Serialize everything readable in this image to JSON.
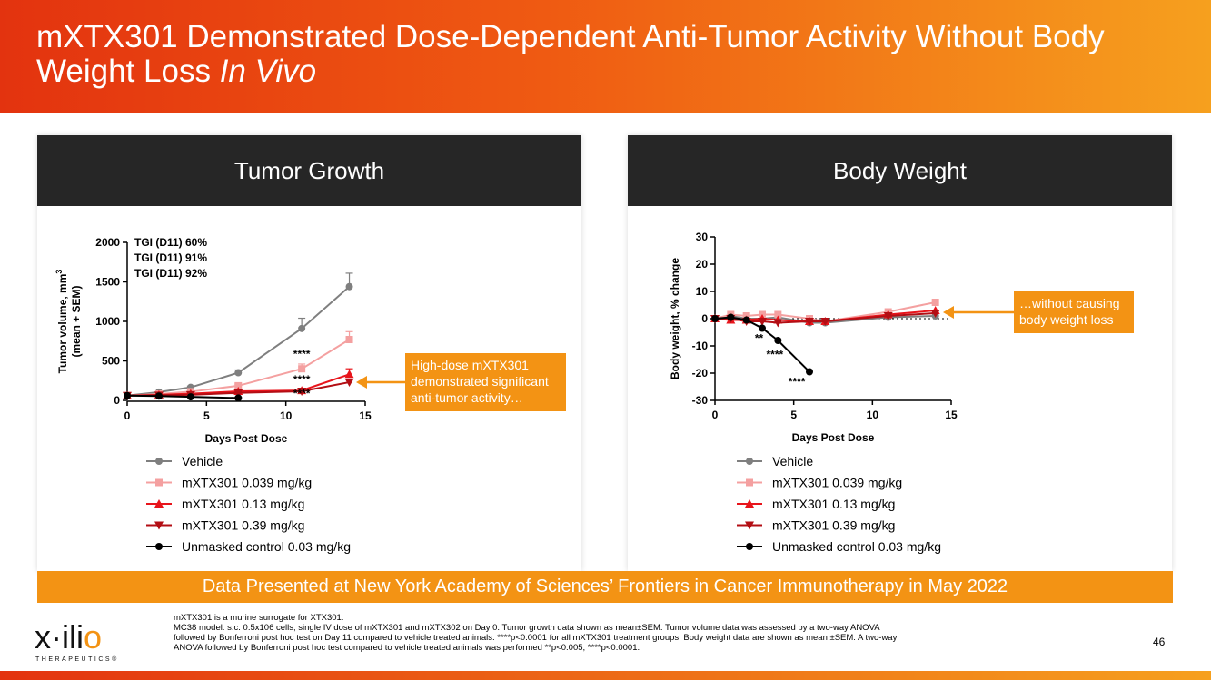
{
  "slide": {
    "title_main": "mXTX301 Demonstrated Dose-Dependent Anti-Tumor Activity Without Body Weight Loss ",
    "title_italic": "In Vivo",
    "page_number": "46",
    "banner": "Data Presented at New York Academy of Sciences’ Frontiers in Cancer Immunotherapy in May 2022",
    "footnotes": [
      "mXTX301 is a murine surrogate for XTX301.",
      "MC38 model: s.c. 0.5x106 cells; single IV dose of mXTX301 and mXTX302 on Day 0. Tumor growth data shown as mean±SEM. Tumor volume data was assessed by a two-way ANOVA followed by Bonferroni post hoc test on Day 11 compared to vehicle treated animals. ****p<0.0001 for all mXTX301 treatment groups. Body weight data are shown as mean ±SEM. A two-way ANOVA followed by Bonferroni post hoc test compared to vehicle treated animals was performed **p<0.005, ****p<0.0001."
    ],
    "logo_text_pre": "x·ili",
    "logo_text_o": "o",
    "logo_sub": "THERAPEUTICS",
    "logo_mark": "®"
  },
  "colors": {
    "vehicle": "#7f7f7f",
    "low": "#f4a0a0",
    "mid": "#e8141b",
    "high": "#b30e14",
    "control": "#000000",
    "accent": "#f39314"
  },
  "legend": [
    {
      "name": "Vehicle",
      "marker": "circle",
      "color_key": "vehicle"
    },
    {
      "name": "mXTX301 0.039 mg/kg",
      "marker": "square",
      "color_key": "low"
    },
    {
      "name": "mXTX301 0.13 mg/kg",
      "marker": "triangle-up",
      "color_key": "mid"
    },
    {
      "name": "mXTX301 0.39 mg/kg",
      "marker": "triangle-down",
      "color_key": "high"
    },
    {
      "name": "Unmasked control 0.03 mg/kg",
      "marker": "circle",
      "color_key": "control"
    }
  ],
  "chart_data": [
    {
      "type": "line",
      "panel_title": "Tumor Growth",
      "title": "Tumor Growth",
      "xlabel": "Days Post Dose",
      "ylabel": "Tumor volume, mm",
      "ylabel_sup": "3",
      "ylabel2": "(mean + SEM)",
      "xlim": [
        0,
        15
      ],
      "ylim": [
        0,
        2000
      ],
      "xticks": [
        0,
        5,
        10,
        15
      ],
      "yticks": [
        0,
        500,
        1000,
        1500,
        2000
      ],
      "tgi_labels": [
        {
          "text": "TGI (D11) 60%",
          "color_key": "low"
        },
        {
          "text": "TGI (D11) 91%",
          "color_key": "mid"
        },
        {
          "text": "TGI (D11) 92%",
          "color_key": "high"
        }
      ],
      "annotations": [
        {
          "text": "****",
          "x": 11,
          "y": 540,
          "color_key": "low"
        },
        {
          "text": "****",
          "x": 11,
          "y": 220,
          "color_key": "mid"
        },
        {
          "text": "****",
          "x": 11,
          "y": 40,
          "color_key": "high"
        }
      ],
      "series": [
        {
          "name": "Vehicle",
          "color_key": "vehicle",
          "marker": "circle",
          "x": [
            0,
            2,
            4,
            7,
            11,
            14
          ],
          "y": [
            60,
            105,
            165,
            350,
            910,
            1440
          ],
          "err": [
            0,
            10,
            15,
            35,
            130,
            170
          ]
        },
        {
          "name": "mXTX301 0.039 mg/kg",
          "color_key": "low",
          "marker": "square",
          "x": [
            0,
            2,
            4,
            7,
            11,
            14
          ],
          "y": [
            60,
            80,
            110,
            185,
            400,
            770
          ],
          "err": [
            0,
            8,
            10,
            20,
            60,
            100
          ]
        },
        {
          "name": "mXTX301 0.13 mg/kg",
          "color_key": "mid",
          "marker": "triangle-up",
          "x": [
            0,
            2,
            4,
            7,
            11,
            14
          ],
          "y": [
            60,
            70,
            85,
            115,
            125,
            330
          ],
          "err": [
            0,
            6,
            8,
            12,
            20,
            70
          ]
        },
        {
          "name": "mXTX301 0.39 mg/kg",
          "color_key": "high",
          "marker": "triangle-down",
          "x": [
            0,
            2,
            4,
            7,
            11,
            14
          ],
          "y": [
            60,
            65,
            70,
            95,
            115,
            230
          ],
          "err": [
            0,
            5,
            6,
            10,
            15,
            40
          ]
        },
        {
          "name": "Unmasked control 0.03 mg/kg",
          "color_key": "control",
          "marker": "circle",
          "x": [
            0,
            2,
            4,
            7
          ],
          "y": [
            60,
            55,
            45,
            30
          ],
          "err": [
            0,
            5,
            5,
            5
          ]
        }
      ],
      "callout": "High-dose mXTX301 demonstrated significant anti-tumor activity…"
    },
    {
      "type": "line",
      "panel_title": "Body Weight",
      "title": "Body Weight",
      "xlabel": "Days Post Dose",
      "ylabel": "Body weight, % change",
      "xlim": [
        0,
        15
      ],
      "ylim": [
        -30,
        30
      ],
      "xticks": [
        0,
        5,
        10,
        15
      ],
      "yticks": [
        -30,
        -20,
        -10,
        0,
        10,
        20,
        30
      ],
      "reference_line": 0,
      "annotations": [
        {
          "text": "**",
          "x": 2.8,
          "y": -8.5,
          "color_key": "control"
        },
        {
          "text": "****",
          "x": 3.8,
          "y": -14.5,
          "color_key": "control"
        },
        {
          "text": "****",
          "x": 5.2,
          "y": -24.5,
          "color_key": "control"
        }
      ],
      "series": [
        {
          "name": "Vehicle",
          "color_key": "vehicle",
          "marker": "circle",
          "x": [
            0,
            1,
            2,
            3,
            4,
            6,
            7,
            11,
            14
          ],
          "y": [
            0,
            1,
            0,
            0,
            0.5,
            -1.5,
            -1.5,
            0.5,
            1
          ]
        },
        {
          "name": "mXTX301 0.039 mg/kg",
          "color_key": "low",
          "marker": "square",
          "x": [
            0,
            1,
            2,
            3,
            4,
            6,
            7,
            11,
            14
          ],
          "y": [
            0,
            1.5,
            1,
            1.5,
            1.5,
            0,
            -1,
            2.5,
            6
          ]
        },
        {
          "name": "mXTX301 0.13 mg/kg",
          "color_key": "mid",
          "marker": "triangle-up",
          "x": [
            0,
            1,
            2,
            3,
            4,
            6,
            7,
            11,
            14
          ],
          "y": [
            0,
            -0.5,
            -0.5,
            0,
            -0.5,
            -1,
            -1,
            1.5,
            3
          ]
        },
        {
          "name": "mXTX301 0.39 mg/kg",
          "color_key": "high",
          "marker": "triangle-down",
          "x": [
            0,
            1,
            2,
            3,
            4,
            6,
            7,
            11,
            14
          ],
          "y": [
            0,
            0,
            -1,
            -1,
            -1.5,
            -1,
            -1,
            1,
            2
          ]
        },
        {
          "name": "Unmasked control 0.03 mg/kg",
          "color_key": "control",
          "marker": "circle",
          "x": [
            0,
            1,
            2,
            3,
            4,
            6
          ],
          "y": [
            0,
            0.5,
            -0.5,
            -3.5,
            -8,
            -19.5
          ]
        }
      ],
      "callout": "…without causing body weight loss"
    }
  ]
}
